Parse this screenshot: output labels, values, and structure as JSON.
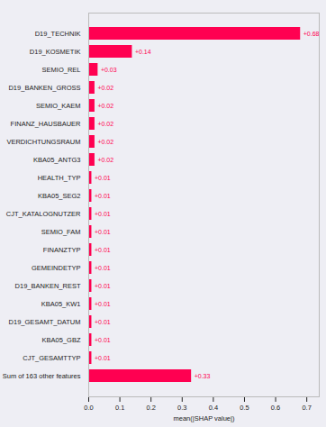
{
  "chart_data": {
    "type": "bar",
    "orientation": "horizontal",
    "color": "#ff0051",
    "x_label": "mean(|SHAP value|)",
    "categories": [
      "D19_TECHNIK",
      "D19_KOSMETIK",
      "SEMIO_REL",
      "D19_BANKEN_GROSS",
      "SEMIO_KAEM",
      "FINANZ_HAUSBAUER",
      "VERDICHTUNGSRAUM",
      "KBA05_ANTG3",
      "HEALTH_TYP",
      "KBA05_SEG2",
      "CJT_KATALOGNUTZER",
      "SEMIO_FAM",
      "FINANZTYP",
      "GEMEINDETYP",
      "D19_BANKEN_REST",
      "KBA05_KW1",
      "D19_GESAMT_DATUM",
      "KBA05_GBZ",
      "CJT_GESAMTTYP",
      "Sum of 163 other features"
    ],
    "values": [
      0.68,
      0.14,
      0.03,
      0.02,
      0.02,
      0.02,
      0.02,
      0.02,
      0.01,
      0.01,
      0.01,
      0.01,
      0.01,
      0.01,
      0.01,
      0.01,
      0.01,
      0.01,
      0.01,
      0.33
    ],
    "value_labels": [
      "+0.68",
      "+0.14",
      "+0.03",
      "+0.02",
      "+0.02",
      "+0.02",
      "+0.02",
      "+0.02",
      "+0.01",
      "+0.01",
      "+0.01",
      "+0.01",
      "+0.01",
      "+0.01",
      "+0.01",
      "+0.01",
      "+0.01",
      "+0.01",
      "+0.01",
      "+0.33"
    ],
    "data_labels": true,
    "xlim": [
      0,
      0.74
    ],
    "xticks": [
      {
        "value": 0,
        "label": "0.0"
      },
      {
        "value": 0.1,
        "label": "0.1"
      },
      {
        "value": 0.2,
        "label": "0.2"
      },
      {
        "value": 0.3,
        "label": "0.3"
      },
      {
        "value": 0.4,
        "label": "0.4"
      },
      {
        "value": 0.5,
        "label": "0.5"
      },
      {
        "value": 0.6,
        "label": "0.6"
      },
      {
        "value": 0.7,
        "label": "0.7"
      }
    ],
    "grid": false
  }
}
